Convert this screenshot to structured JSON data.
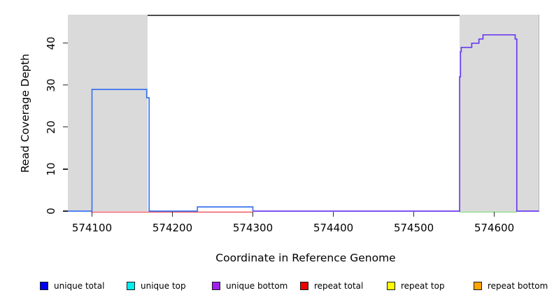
{
  "figure": {
    "x_axis_label": "Coordinate in Reference Genome",
    "y_axis_label": "Read Coverage Depth"
  },
  "legend": {
    "swatch_border_color": "#1a1a1a",
    "items": [
      {
        "label": "unique total",
        "color": "#0000EE"
      },
      {
        "label": "unique top",
        "color": "#00EEEE"
      },
      {
        "label": "unique bottom",
        "color": "#A020F0"
      },
      {
        "label": "repeat total",
        "color": "#EE0000"
      },
      {
        "label": "repeat top",
        "color": "#FFFF00"
      },
      {
        "label": "repeat bottom",
        "color": "#FFA500"
      }
    ]
  },
  "chart_data": {
    "type": "line",
    "title": "",
    "xlabel": "Coordinate in Reference Genome",
    "ylabel": "Read Coverage Depth",
    "xlim": [
      574070,
      574656
    ],
    "ylim": [
      0,
      46.8
    ],
    "x_ticks": [
      574100,
      574200,
      574300,
      574400,
      574500,
      574600
    ],
    "y_ticks": [
      0,
      10,
      20,
      30,
      40
    ],
    "grid": false,
    "legend_position": "bottom",
    "background_shading": {
      "color": "#DADADA",
      "meaning": "repeat regions",
      "regions": [
        [
          574070,
          574169
        ],
        [
          574557,
          574656
        ]
      ]
    },
    "series": [
      {
        "name": "repeat total baseline",
        "color": "#EE4050",
        "width": 1.3,
        "dy": 1.4,
        "points": [
          [
            574099,
            0
          ],
          [
            574300,
            0
          ]
        ]
      },
      {
        "name": "baseline green segment",
        "color": "#7FCC7F",
        "width": 1.3,
        "dy": 1.2,
        "points": [
          [
            574557,
            0
          ],
          [
            574628,
            0
          ]
        ]
      },
      {
        "name": "unique coverage left block",
        "color": "#3C74EE",
        "width": 1.7,
        "dy": 0,
        "points": [
          [
            574070,
            0
          ],
          [
            574100,
            0
          ],
          [
            574100,
            29
          ],
          [
            574168,
            29
          ],
          [
            574168,
            27
          ],
          [
            574171,
            27
          ],
          [
            574171,
            0
          ],
          [
            574231,
            0
          ],
          [
            574231,
            1
          ],
          [
            574300,
            1
          ],
          [
            574300,
            0
          ]
        ]
      },
      {
        "name": "unique bottom coverage right block",
        "color": "#6B3BEF",
        "width": 1.7,
        "dy": 0,
        "points": [
          [
            574300,
            0
          ],
          [
            574557,
            0
          ],
          [
            574557,
            32
          ],
          [
            574558,
            32
          ],
          [
            574558,
            38
          ],
          [
            574559,
            38
          ],
          [
            574559,
            39
          ],
          [
            574572,
            39
          ],
          [
            574572,
            40
          ],
          [
            574581,
            40
          ],
          [
            574581,
            41
          ],
          [
            574586,
            41
          ],
          [
            574586,
            42
          ],
          [
            574626,
            42
          ],
          [
            574626,
            41
          ],
          [
            574628,
            41
          ],
          [
            574628,
            0
          ],
          [
            574656,
            0
          ]
        ]
      }
    ]
  }
}
